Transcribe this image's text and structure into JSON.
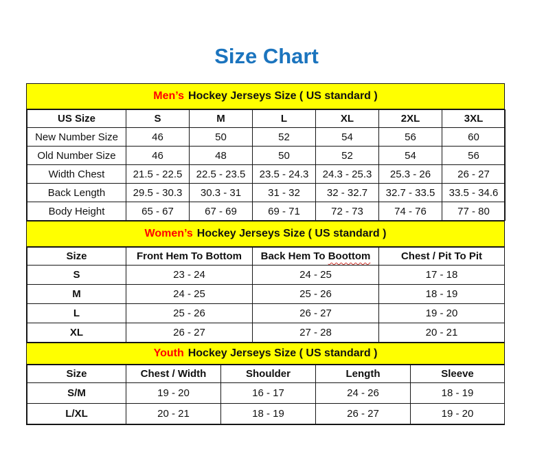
{
  "page": {
    "title": "Size Chart",
    "colors": {
      "title_blue": "#1B74BE",
      "banner_yellow": "#FFFF00",
      "accent_red": "#FF0000",
      "border_black": "#151515",
      "squiggle_red": "#D0342C"
    }
  },
  "tables": [
    {
      "id": "mens",
      "banner": {
        "highlight": "Men’s",
        "rest": "Hockey Jerseys Size ( US standard )"
      },
      "columns": [
        {
          "label": "US Size"
        },
        {
          "label": "S"
        },
        {
          "label": "M"
        },
        {
          "label": "L"
        },
        {
          "label": "XL"
        },
        {
          "label": "2XL"
        },
        {
          "label": "3XL"
        }
      ],
      "col_widths": [
        "144px",
        "92px",
        "92px",
        "92px",
        "92px",
        "92px",
        "92px"
      ],
      "label_bold": false,
      "rows": [
        {
          "label": "New Number Size",
          "values": [
            "46",
            "50",
            "52",
            "54",
            "56",
            "60"
          ]
        },
        {
          "label": "Old Number Size",
          "values": [
            "46",
            "48",
            "50",
            "52",
            "54",
            "56"
          ]
        },
        {
          "label": "Width Chest",
          "values": [
            "21.5 - 22.5",
            "22.5 - 23.5",
            "23.5 - 24.3",
            "24.3 - 25.3",
            "25.3 - 26",
            "26 - 27"
          ]
        },
        {
          "label": "Back Length",
          "values": [
            "29.5 - 30.3",
            "30.3 - 31",
            "31 - 32",
            "32 - 32.7",
            "32.7 - 33.5",
            "33.5 - 34.6"
          ]
        },
        {
          "label": "Body Height",
          "values": [
            "65 - 67",
            "67 - 69",
            "69 - 71",
            "72 - 73",
            "74 - 76",
            "77 - 80"
          ]
        }
      ]
    },
    {
      "id": "womens",
      "banner": {
        "highlight": "Women’s",
        "rest": "Hockey Jerseys Size ( US standard )"
      },
      "columns": [
        {
          "label": "Size"
        },
        {
          "label": "Front Hem To Bottom"
        },
        {
          "label": "Back Hem To Boottom",
          "squiggle": "Boottom"
        },
        {
          "label": "Chest / Pit To Pit"
        }
      ],
      "col_widths": [
        "144px",
        "184px",
        "184px",
        "183px"
      ],
      "label_bold": true,
      "rows": [
        {
          "label": "S",
          "values": [
            "23 - 24",
            "24 - 25",
            "17 - 18"
          ]
        },
        {
          "label": "M",
          "values": [
            "24 - 25",
            "25 - 26",
            "18 - 19"
          ]
        },
        {
          "label": "L",
          "values": [
            "25 - 26",
            "26 - 27",
            "19 - 20"
          ]
        },
        {
          "label": "XL",
          "values": [
            "26 - 27",
            "27 - 28",
            "20 - 21"
          ]
        }
      ]
    },
    {
      "id": "youth",
      "banner": {
        "highlight": "Youth",
        "rest": "Hockey Jerseys Size ( US standard )"
      },
      "columns": [
        {
          "label": "Size"
        },
        {
          "label": "Chest / Width"
        },
        {
          "label": "Shoulder"
        },
        {
          "label": "Length"
        },
        {
          "label": "Sleeve"
        }
      ],
      "col_widths": [
        "144px",
        "138px",
        "138px",
        "138px",
        "137px"
      ],
      "label_bold": true,
      "rows": [
        {
          "label": "S/M",
          "values": [
            "19 - 20",
            "16 - 17",
            "24 - 26",
            "18 - 19"
          ]
        },
        {
          "label": "L/XL",
          "values": [
            "20 - 21",
            "18 - 19",
            "26 - 27",
            "19 - 20"
          ]
        }
      ]
    }
  ]
}
